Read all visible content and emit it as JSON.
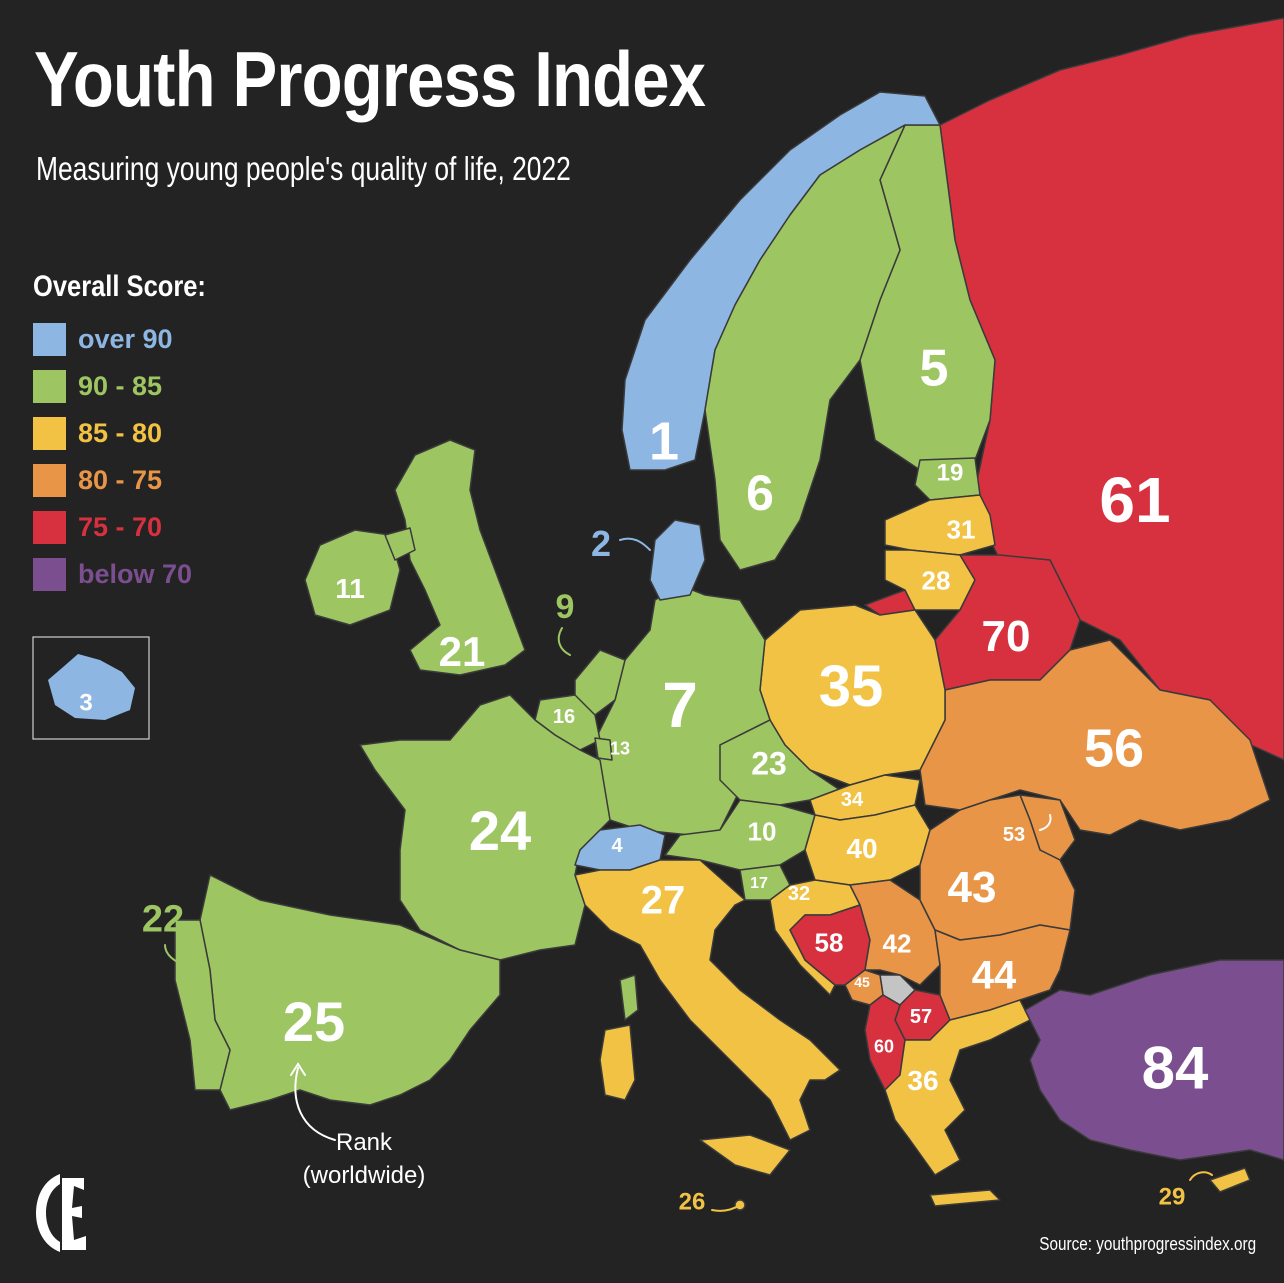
{
  "title": "Youth Progress Index",
  "subtitle": "Measuring young people's quality of life, 2022",
  "source": "Source: youthprogressindex.org",
  "legend": {
    "heading": "Overall Score:",
    "items": [
      {
        "label": "over 90",
        "color": "#8db6e2"
      },
      {
        "label": "90 - 85",
        "color": "#9dc562"
      },
      {
        "label": "85 - 80",
        "color": "#f2c244"
      },
      {
        "label": "80 - 75",
        "color": "#e99548"
      },
      {
        "label": "75 - 70",
        "color": "#d7303f"
      },
      {
        "label": "below 70",
        "color": "#7b4f8f"
      }
    ]
  },
  "annotation": {
    "line1": "Rank",
    "line2": "(worldwide)"
  },
  "colors": {
    "background": "#232323",
    "no_data": "#c4c4c4",
    "border": "#3a3a3a"
  },
  "ranks": [
    {
      "country": "Norway",
      "rank": "1",
      "band": "over 90"
    },
    {
      "country": "Denmark",
      "rank": "2",
      "band": "over 90"
    },
    {
      "country": "Iceland",
      "rank": "3",
      "band": "over 90"
    },
    {
      "country": "Switzerland",
      "rank": "4",
      "band": "over 90"
    },
    {
      "country": "Finland",
      "rank": "5",
      "band": "90 - 85"
    },
    {
      "country": "Sweden",
      "rank": "6",
      "band": "90 - 85"
    },
    {
      "country": "Germany",
      "rank": "7",
      "band": "90 - 85"
    },
    {
      "country": "Netherlands",
      "rank": "9",
      "band": "90 - 85"
    },
    {
      "country": "Austria",
      "rank": "10",
      "band": "90 - 85"
    },
    {
      "country": "Ireland",
      "rank": "11",
      "band": "90 - 85"
    },
    {
      "country": "Luxembourg",
      "rank": "13",
      "band": "90 - 85"
    },
    {
      "country": "Belgium",
      "rank": "16",
      "band": "90 - 85"
    },
    {
      "country": "Slovenia",
      "rank": "17",
      "band": "90 - 85"
    },
    {
      "country": "Estonia",
      "rank": "19",
      "band": "90 - 85"
    },
    {
      "country": "United Kingdom",
      "rank": "21",
      "band": "90 - 85"
    },
    {
      "country": "Portugal",
      "rank": "22",
      "band": "90 - 85"
    },
    {
      "country": "Czechia",
      "rank": "23",
      "band": "90 - 85"
    },
    {
      "country": "France",
      "rank": "24",
      "band": "90 - 85"
    },
    {
      "country": "Spain",
      "rank": "25",
      "band": "90 - 85"
    },
    {
      "country": "Malta",
      "rank": "26",
      "band": "85 - 80"
    },
    {
      "country": "Italy",
      "rank": "27",
      "band": "85 - 80"
    },
    {
      "country": "Lithuania",
      "rank": "28",
      "band": "85 - 80"
    },
    {
      "country": "Cyprus",
      "rank": "29",
      "band": "85 - 80"
    },
    {
      "country": "Latvia",
      "rank": "31",
      "band": "85 - 80"
    },
    {
      "country": "Croatia",
      "rank": "32",
      "band": "85 - 80"
    },
    {
      "country": "Slovakia",
      "rank": "34",
      "band": "85 - 80"
    },
    {
      "country": "Poland",
      "rank": "35",
      "band": "85 - 80"
    },
    {
      "country": "Greece",
      "rank": "36",
      "band": "85 - 80"
    },
    {
      "country": "Hungary",
      "rank": "40",
      "band": "85 - 80"
    },
    {
      "country": "Serbia",
      "rank": "42",
      "band": "80 - 75"
    },
    {
      "country": "Romania",
      "rank": "43",
      "band": "80 - 75"
    },
    {
      "country": "Bulgaria",
      "rank": "44",
      "band": "80 - 75"
    },
    {
      "country": "Montenegro",
      "rank": "45",
      "band": "80 - 75"
    },
    {
      "country": "Moldova",
      "rank": "53",
      "band": "80 - 75"
    },
    {
      "country": "Ukraine",
      "rank": "56",
      "band": "80 - 75"
    },
    {
      "country": "North Macedonia",
      "rank": "57",
      "band": "75 - 70"
    },
    {
      "country": "Bosnia and Herzegovina",
      "rank": "58",
      "band": "75 - 70"
    },
    {
      "country": "Albania",
      "rank": "60",
      "band": "75 - 70"
    },
    {
      "country": "Russia",
      "rank": "61",
      "band": "75 - 70"
    },
    {
      "country": "Belarus",
      "rank": "70",
      "band": "75 - 70"
    },
    {
      "country": "Turkey",
      "rank": "84",
      "band": "below 70"
    }
  ]
}
